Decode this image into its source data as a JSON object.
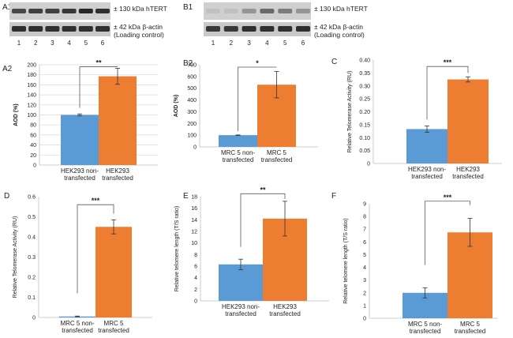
{
  "blots": [
    {
      "id": "A1",
      "label": "A1",
      "target_label": "± 130 kDa hTERT",
      "control_label_1": "± 42 kDa β-actin",
      "control_label_2": "(Loading control)",
      "lanes": [
        "1",
        "2",
        "3",
        "4",
        "5",
        "6"
      ],
      "target_intensity": [
        0.75,
        0.8,
        0.8,
        0.85,
        0.95,
        0.9
      ],
      "control_intensity": [
        0.9,
        0.9,
        0.9,
        0.9,
        0.9,
        0.9
      ]
    },
    {
      "id": "B1",
      "label": "B1",
      "target_label": "± 130 kDa hTERT",
      "control_label_1": "± 42 kDa β-actin",
      "control_label_2": "(Loading control)",
      "lanes": [
        "1",
        "2",
        "3",
        "4",
        "5",
        "6"
      ],
      "target_intensity": [
        0.05,
        0.05,
        0.3,
        0.55,
        0.45,
        0.3
      ],
      "control_intensity": [
        0.85,
        0.85,
        0.9,
        0.9,
        0.9,
        0.9
      ]
    }
  ],
  "colors": {
    "blue": "#5b9bd5",
    "orange": "#ed7d31",
    "axis": "#bfbfbf",
    "grid": "#d9d9d9",
    "bracket": "#595959"
  },
  "chart_data": [
    {
      "id": "A2",
      "label": "A2",
      "type": "bar",
      "categories": [
        [
          "HEK293 non-",
          "transfected"
        ],
        [
          "HEK293",
          "transfected"
        ]
      ],
      "values": [
        100,
        177
      ],
      "errors": [
        2,
        16
      ],
      "ylabel": "AOD (%)",
      "ylim": [
        0,
        200
      ],
      "yticks": [
        0,
        20,
        40,
        60,
        80,
        100,
        120,
        140,
        160,
        180,
        200
      ],
      "significance": "**",
      "bracket_lows": [
        114,
        196
      ],
      "bracket_top": 196,
      "grid": true
    },
    {
      "id": "B2",
      "label": "B2",
      "type": "bar",
      "categories": [
        [
          "MRC 5 non-",
          "transfected"
        ],
        [
          "MRC 5",
          "transfected"
        ]
      ],
      "values": [
        100,
        530
      ],
      "errors": [
        2,
        112
      ],
      "ylabel": "AOD (%)",
      "ylim": [
        0,
        700
      ],
      "yticks": [
        0,
        100,
        200,
        300,
        400,
        500,
        600,
        700
      ],
      "significance": "*",
      "bracket_lows": [
        135,
        680
      ],
      "bracket_top": 680,
      "grid": false
    },
    {
      "id": "C",
      "label": "C",
      "type": "bar",
      "categories": [
        [
          "HEK293 non-",
          "transfected"
        ],
        [
          "HEK293",
          "transfected"
        ]
      ],
      "values": [
        0.133,
        0.325
      ],
      "errors": [
        0.012,
        0.01
      ],
      "ylabel": "Relative Telomerase Activity (RU)",
      "ylim": [
        0,
        0.4
      ],
      "yticks": [
        0,
        0.05,
        0.1,
        0.15,
        0.2,
        0.25,
        0.3,
        0.35,
        0.4
      ],
      "significance": "***",
      "bracket_lows": [
        0.17,
        0.35
      ],
      "bracket_top": 0.375,
      "grid": false
    },
    {
      "id": "D",
      "label": "D",
      "type": "bar",
      "categories": [
        [
          "MRC 5 non-",
          "transfected"
        ],
        [
          "MRC 5",
          "transfected"
        ]
      ],
      "values": [
        0.005,
        0.45
      ],
      "errors": [
        0.002,
        0.035
      ],
      "ylabel": "Relative Telomerase Activity (RU)",
      "ylim": [
        0,
        0.6
      ],
      "yticks": [
        0,
        0.1,
        0.2,
        0.3,
        0.4,
        0.5,
        0.6
      ],
      "significance": "***",
      "bracket_lows": [
        0.12,
        0.515
      ],
      "bracket_top": 0.56,
      "grid": false
    },
    {
      "id": "E",
      "label": "E",
      "type": "bar",
      "categories": [
        [
          "HEK293 non-",
          "transfected"
        ],
        [
          "HEK293",
          "transfected"
        ]
      ],
      "values": [
        6.3,
        14.2
      ],
      "errors": [
        0.9,
        3.0
      ],
      "ylabel": "Relative telomere length (T/S ratio)",
      "ylim": [
        0,
        18
      ],
      "yticks": [
        0,
        2,
        4,
        6,
        8,
        10,
        12,
        14,
        16,
        18
      ],
      "significance": "**",
      "bracket_lows": [
        9.3,
        17.6
      ],
      "bracket_top": 18.5,
      "grid": false
    },
    {
      "id": "F",
      "label": "F",
      "type": "bar",
      "categories": [
        [
          "MRC 5 non-",
          "transfected"
        ],
        [
          "MRC 5",
          "transfected"
        ]
      ],
      "values": [
        2.0,
        6.75
      ],
      "errors": [
        0.4,
        1.1
      ],
      "ylabel": "Relative telomere length (T/S ratio)",
      "ylim": [
        0,
        9
      ],
      "yticks": [
        0,
        1,
        2,
        3,
        4,
        5,
        6,
        7,
        8,
        9
      ],
      "significance": "***",
      "bracket_lows": [
        4.2,
        8.9
      ],
      "bracket_top": 9.2,
      "grid": false
    }
  ]
}
